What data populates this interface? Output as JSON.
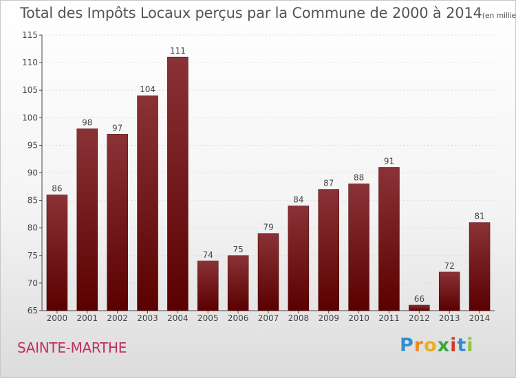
{
  "title": "Total des Impôts Locaux perçus par la Commune de 2000 à 2014",
  "title_unit": "(en milliers d'€)",
  "commune": "SAINTE-MARTHE",
  "logo": {
    "letters": [
      "P",
      "r",
      "o",
      "x",
      "i",
      "t",
      "i"
    ],
    "colors": [
      "#2f8fd0",
      "#f08a1c",
      "#e8b020",
      "#3aa63a",
      "#d43a2a",
      "#2f8fd0",
      "#8cc63f"
    ]
  },
  "colors": {
    "bar_top": "#8a3236",
    "bar_bottom": "#5a0000",
    "axis": "#444444",
    "grid": "#dddddd"
  },
  "chart_data": {
    "type": "bar",
    "title": "Total des Impôts Locaux perçus par la Commune de 2000 à 2014",
    "xlabel": "",
    "ylabel": "",
    "categories": [
      "2000",
      "2001",
      "2002",
      "2003",
      "2004",
      "2005",
      "2006",
      "2007",
      "2008",
      "2009",
      "2010",
      "2011",
      "2012",
      "2013",
      "2014"
    ],
    "values": [
      86,
      98,
      97,
      104,
      111,
      74,
      75,
      79,
      84,
      87,
      88,
      91,
      66,
      72,
      81
    ],
    "ylim": [
      65,
      115
    ],
    "yticks": [
      65,
      70,
      75,
      80,
      85,
      90,
      95,
      100,
      105,
      110,
      115
    ],
    "data_labels": true,
    "grid": false,
    "legend": "none"
  }
}
